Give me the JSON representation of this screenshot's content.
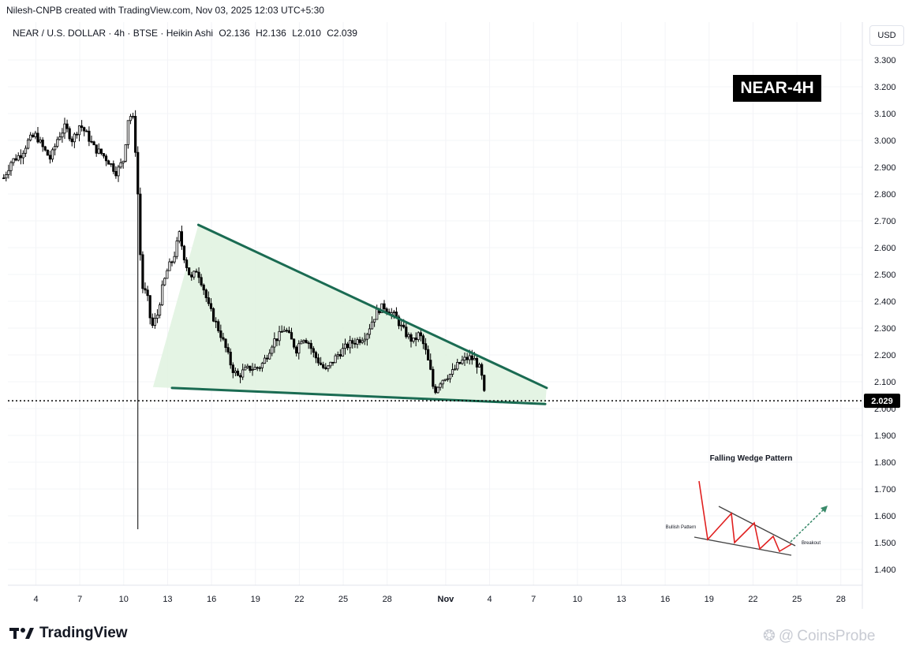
{
  "header": {
    "credit": "Nilesh-CNPB created with TradingView.com, Nov 03, 2025 12:03 UTC+5:30",
    "pair": "NEAR / U.S. DOLLAR · 4h · BTSE · Heikin Ashi",
    "open": "O2.136",
    "high": "H2.136",
    "low": "L2.010",
    "close": "C2.039"
  },
  "currency_button": "USD",
  "tag_label": "NEAR-4H",
  "brand": "TradingView",
  "watermark": "CoinsProbe",
  "last_price_label": "2.029",
  "colors": {
    "wedge_line": "#1a6b52",
    "wedge_fill": "#dff2df",
    "candle": "#000000",
    "price_line": "#000000",
    "pattern_zigzag": "#e02020",
    "breakout_arrow": "#3a8a6a"
  },
  "inset": {
    "title": "Falling Wedge Pattern",
    "bullish_label": "Bullish Pattern",
    "breakout_label": "Breakout"
  },
  "chart_data": {
    "type": "candlestick",
    "timeframe": "4h",
    "y_ticks": [
      "3.300",
      "3.200",
      "3.100",
      "3.000",
      "2.900",
      "2.800",
      "2.700",
      "2.600",
      "2.500",
      "2.400",
      "2.300",
      "2.200",
      "2.100",
      "2.000",
      "1.900",
      "1.800",
      "1.700",
      "1.600",
      "1.500",
      "1.400"
    ],
    "ylim": [
      1.35,
      3.35
    ],
    "x_ticks": [
      "4",
      "7",
      "10",
      "13",
      "16",
      "19",
      "22",
      "25",
      "28",
      "Nov",
      "4",
      "7",
      "10",
      "13",
      "16",
      "19",
      "22",
      "25",
      "28"
    ],
    "x_tick_days": [
      4,
      7,
      10,
      13,
      16,
      19,
      22,
      25,
      28,
      32,
      35,
      38,
      41,
      44,
      47,
      50,
      53,
      56,
      59
    ],
    "xlim": [
      1.8,
      61
    ],
    "last_price": 2.029,
    "price_path": [
      [
        1.8,
        2.86
      ],
      [
        2.3,
        2.92
      ],
      [
        3.0,
        2.95
      ],
      [
        3.5,
        3.0
      ],
      [
        4.0,
        3.02
      ],
      [
        4.5,
        2.97
      ],
      [
        5.0,
        2.93
      ],
      [
        5.5,
        3.01
      ],
      [
        6.0,
        3.05
      ],
      [
        6.5,
        3.0
      ],
      [
        7.0,
        3.06
      ],
      [
        7.5,
        3.02
      ],
      [
        8.0,
        2.97
      ],
      [
        8.5,
        2.95
      ],
      [
        9.0,
        2.92
      ],
      [
        9.5,
        2.88
      ],
      [
        10.0,
        2.93
      ],
      [
        10.3,
        3.08
      ],
      [
        10.6,
        3.1
      ],
      [
        10.9,
        2.9
      ],
      [
        11.1,
        2.6
      ],
      [
        11.3,
        2.45
      ],
      [
        11.6,
        2.42
      ],
      [
        11.9,
        2.3
      ],
      [
        12.3,
        2.35
      ],
      [
        12.6,
        2.44
      ],
      [
        13.0,
        2.52
      ],
      [
        13.4,
        2.56
      ],
      [
        13.8,
        2.65
      ],
      [
        14.2,
        2.55
      ],
      [
        14.6,
        2.48
      ],
      [
        15.0,
        2.52
      ],
      [
        15.4,
        2.46
      ],
      [
        15.8,
        2.38
      ],
      [
        16.2,
        2.33
      ],
      [
        16.6,
        2.28
      ],
      [
        17.0,
        2.22
      ],
      [
        17.4,
        2.15
      ],
      [
        17.8,
        2.12
      ],
      [
        18.2,
        2.14
      ],
      [
        18.6,
        2.15
      ],
      [
        19.0,
        2.15
      ],
      [
        19.4,
        2.16
      ],
      [
        19.8,
        2.2
      ],
      [
        20.2,
        2.25
      ],
      [
        20.6,
        2.27
      ],
      [
        21.0,
        2.3
      ],
      [
        21.4,
        2.26
      ],
      [
        21.8,
        2.22
      ],
      [
        22.2,
        2.27
      ],
      [
        22.6,
        2.25
      ],
      [
        23.0,
        2.2
      ],
      [
        23.4,
        2.17
      ],
      [
        23.8,
        2.14
      ],
      [
        24.2,
        2.17
      ],
      [
        24.6,
        2.2
      ],
      [
        25.0,
        2.22
      ],
      [
        25.4,
        2.24
      ],
      [
        25.8,
        2.25
      ],
      [
        26.2,
        2.26
      ],
      [
        26.6,
        2.28
      ],
      [
        27.0,
        2.33
      ],
      [
        27.4,
        2.37
      ],
      [
        27.8,
        2.38
      ],
      [
        28.2,
        2.36
      ],
      [
        28.6,
        2.34
      ],
      [
        29.0,
        2.3
      ],
      [
        29.4,
        2.27
      ],
      [
        29.8,
        2.25
      ],
      [
        30.2,
        2.28
      ],
      [
        30.6,
        2.22
      ],
      [
        31.0,
        2.13
      ],
      [
        31.2,
        2.06
      ],
      [
        31.6,
        2.1
      ],
      [
        32.0,
        2.12
      ],
      [
        32.4,
        2.13
      ],
      [
        32.8,
        2.16
      ],
      [
        33.2,
        2.18
      ],
      [
        33.6,
        2.19
      ],
      [
        34.0,
        2.18
      ],
      [
        34.4,
        2.14
      ],
      [
        34.7,
        2.03
      ]
    ],
    "wedge": {
      "upper": [
        [
          15.1,
          2.685
        ],
        [
          38.9,
          2.077
        ]
      ],
      "lower": [
        [
          13.3,
          2.077
        ],
        [
          38.8,
          2.017
        ]
      ],
      "fill_top_left": [
        12.0,
        2.08
      ],
      "fill_apex": [
        15.1,
        2.685
      ]
    },
    "spike_low": 1.55,
    "spike_day": 10.9
  }
}
